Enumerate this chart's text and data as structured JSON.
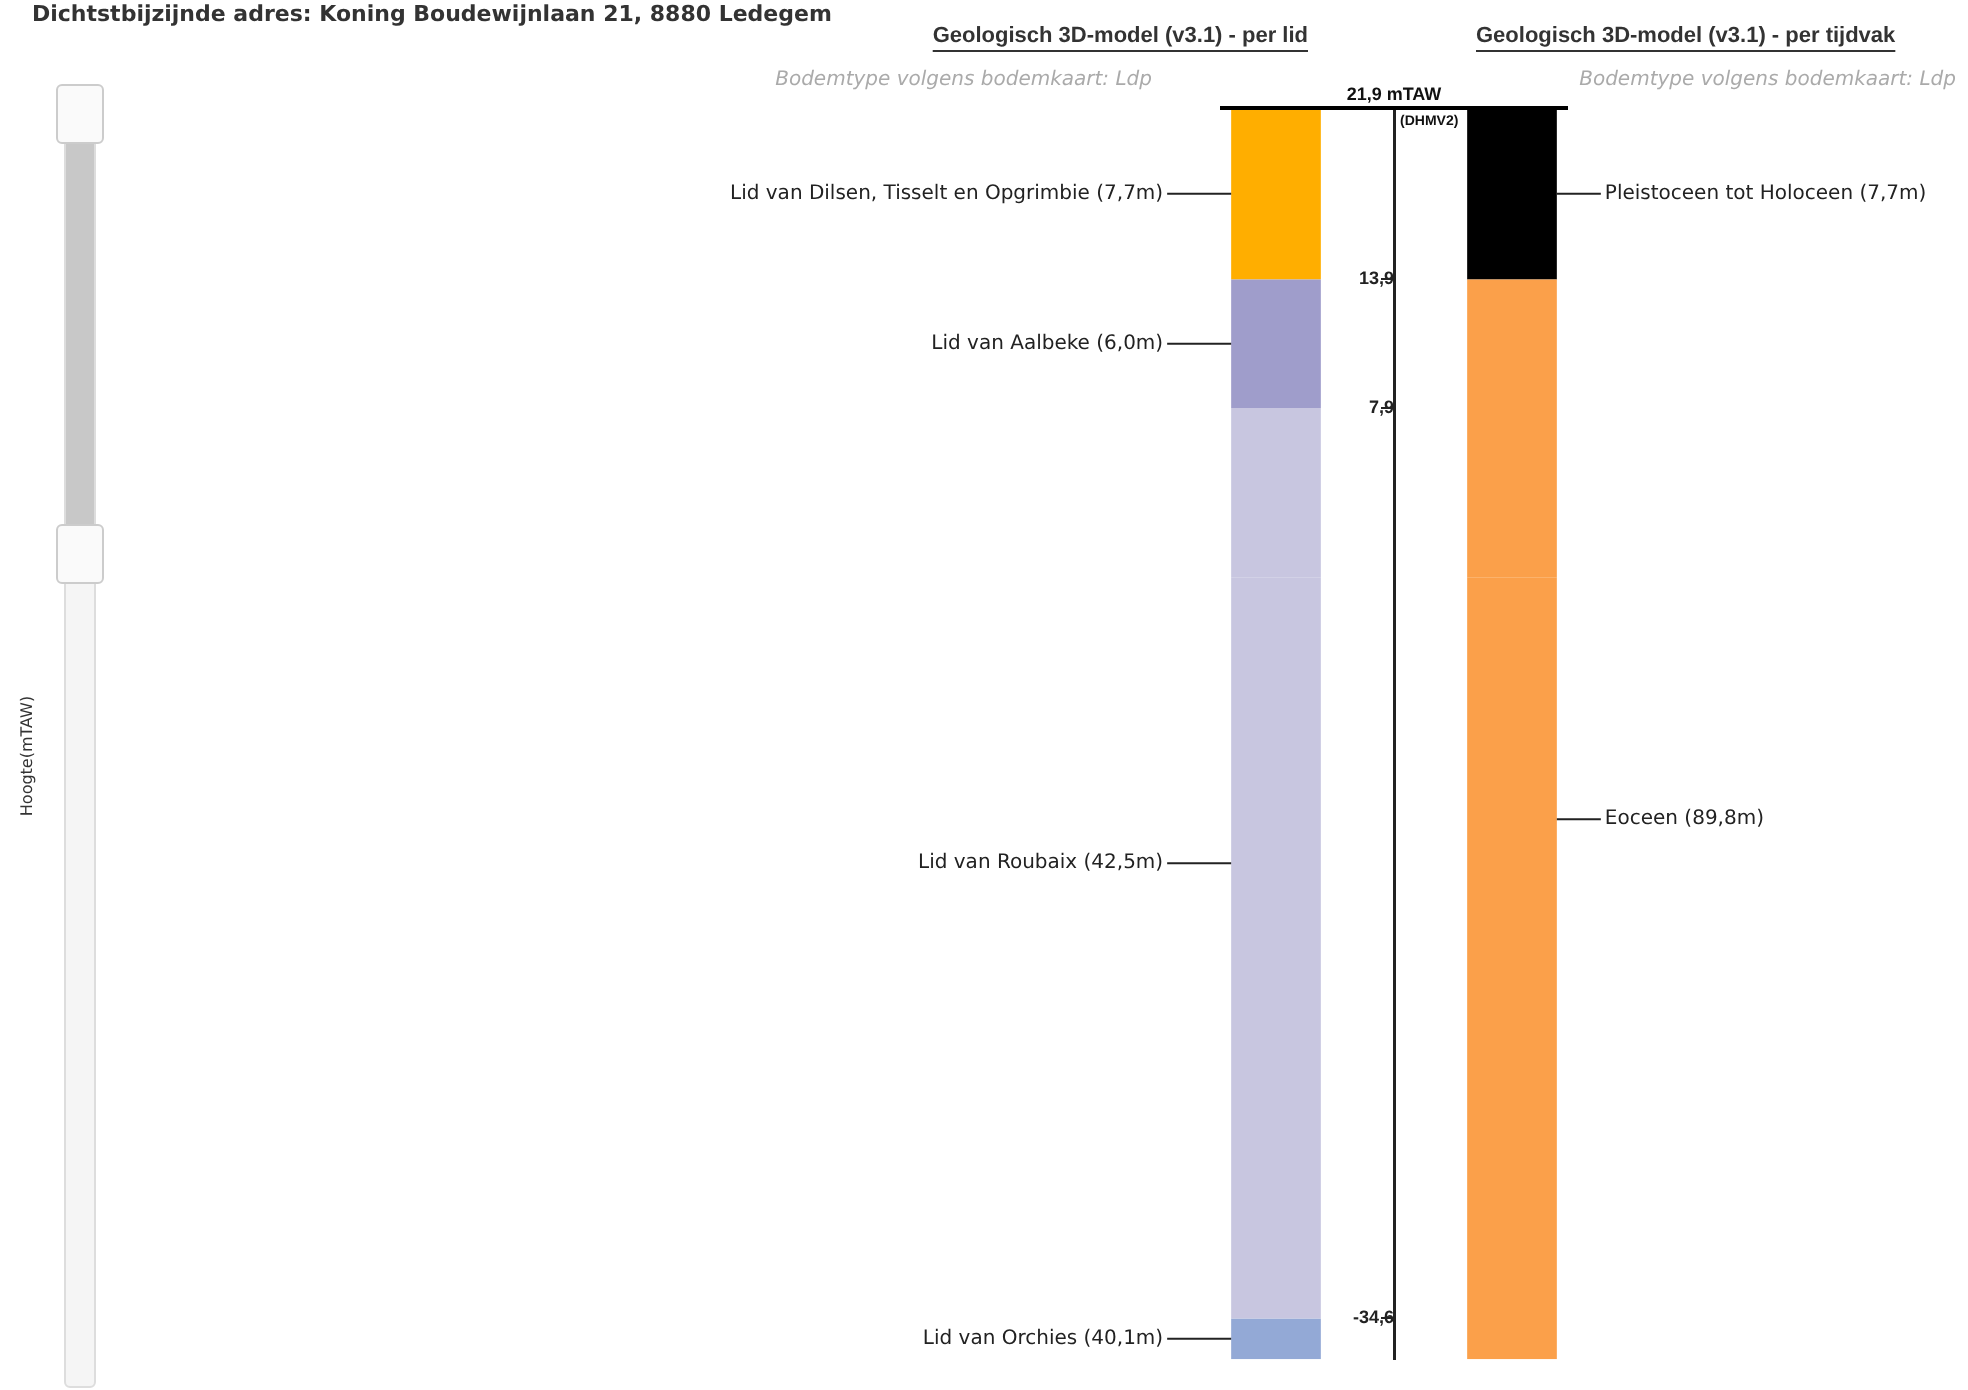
{
  "chart_data": {
    "type": "bar",
    "title": "Dichtstbijzijnde adres: Koning Boudewijnlaan 21, 8880 Ledegem",
    "categories": [
      "Geologisch 3D-model (v3.1) - per lid",
      "Geologisch 3D-model (v3.1) - per tijdvak"
    ],
    "stacked": true,
    "series": [
      {
        "color": "#c8c6e0",
        "values": [
          7.9,
          null
        ]
      },
      {
        "name": "Lid van Aalbeke (6,0m)",
        "color": "#9f9dcb",
        "values": [
          6.0,
          null
        ]
      },
      {
        "name": "Lid van Dilsen, Tisselt en Opgrimbie (7,7m)",
        "color": "#ffae00",
        "values": [
          8.0,
          null
        ]
      },
      {
        "name": "Lid van Roubaix (42,5m)",
        "color": "#c8c6e0",
        "values": [
          -34.6,
          null
        ]
      },
      {
        "name": "Lid van Orchies (40,1m)",
        "color": "#93a9d6",
        "values": [
          -1.9,
          null
        ]
      },
      {
        "color": "#fba04a",
        "values": [
          null,
          13.9
        ]
      },
      {
        "name": "Pleistoceen tot Holoceen (7,7m)",
        "color": "#000000",
        "values": [
          null,
          8.0
        ]
      },
      {
        "name": "Eoceen (89,8m)",
        "color": "#fba04a",
        "values": [
          null,
          -36.5
        ]
      }
    ],
    "ylim": [
      -36.5,
      21.9
    ],
    "yticks": [
      {
        "value": 13.9,
        "label": "13,9"
      },
      {
        "value": 7.9,
        "label": "7,9"
      },
      {
        "value": -34.6,
        "label": "-34,6"
      }
    ],
    "ref_lines": [
      {
        "axis": "y",
        "value": 21.9,
        "label": "21,9 mTAW"
      }
    ],
    "annotations": [
      "Bodemtype volgens bodemkaart: Ldp",
      "Bodemtype volgens bodemkaart: Ldp",
      "(DHMV2)",
      "Hoogte(mTAW)"
    ],
    "grid": false,
    "legend": false
  }
}
